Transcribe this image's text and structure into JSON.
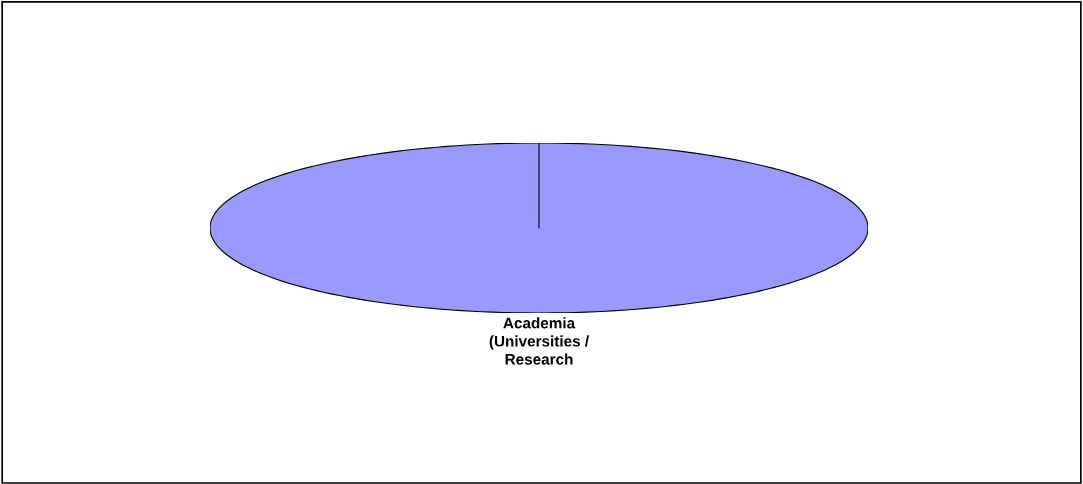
{
  "chart_data": {
    "type": "pie",
    "categories": [
      "Academia\n(Universities /\nResearch"
    ],
    "values": [
      100
    ],
    "colors": [
      "#9999ff"
    ]
  }
}
